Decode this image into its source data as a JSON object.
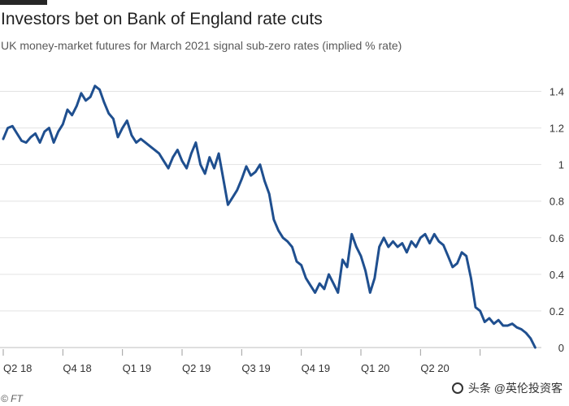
{
  "header": {
    "title": "Investors bet on Bank of England rate cuts",
    "subtitle": "UK money-market futures for March 2021 signal sub-zero rates (implied % rate)"
  },
  "footer": {
    "source": "© FT",
    "watermark": "头条 @英伦投资客"
  },
  "colors": {
    "line": "#1f4f8f",
    "grid": "#e3e3e3",
    "text": "#333333",
    "subtitle": "#595959",
    "accent": "#262626"
  },
  "chart_data": {
    "type": "line",
    "title": "Investors bet on Bank of England rate cuts",
    "subtitle": "UK money-market futures for March 2021 signal sub-zero rates (implied % rate)",
    "xlabel": "",
    "ylabel": "",
    "ylim": [
      0,
      1.5
    ],
    "grid": true,
    "y_axis_side": "right",
    "yticks": [
      0,
      0.2,
      0.4,
      0.6,
      0.8,
      1,
      1.2,
      1.4
    ],
    "ytick_labels": [
      "0",
      "0.2",
      "0.4",
      "0.6",
      "0.8",
      "1",
      "1.2",
      "1.4"
    ],
    "xticks": [
      0,
      13,
      26,
      39,
      52,
      65,
      78,
      91,
      104
    ],
    "xtick_labels": [
      "Q2 18",
      "Q4 18",
      "Q1 19",
      "Q2 19",
      "Q3 19",
      "Q4 19",
      "Q1 20",
      "Q2 20",
      ""
    ],
    "xlim": [
      0,
      117
    ],
    "series": [
      {
        "values": [
          [
            0,
            1.14
          ],
          [
            1,
            1.2
          ],
          [
            2,
            1.21
          ],
          [
            3,
            1.17
          ],
          [
            4,
            1.13
          ],
          [
            5,
            1.12
          ],
          [
            6,
            1.15
          ],
          [
            7,
            1.17
          ],
          [
            8,
            1.12
          ],
          [
            9,
            1.18
          ],
          [
            10,
            1.2
          ],
          [
            11,
            1.12
          ],
          [
            12,
            1.18
          ],
          [
            13,
            1.22
          ],
          [
            14,
            1.3
          ],
          [
            15,
            1.27
          ],
          [
            16,
            1.32
          ],
          [
            17,
            1.39
          ],
          [
            18,
            1.35
          ],
          [
            19,
            1.37
          ],
          [
            20,
            1.43
          ],
          [
            21,
            1.41
          ],
          [
            22,
            1.34
          ],
          [
            23,
            1.28
          ],
          [
            24,
            1.25
          ],
          [
            25,
            1.15
          ],
          [
            26,
            1.2
          ],
          [
            27,
            1.24
          ],
          [
            28,
            1.16
          ],
          [
            29,
            1.12
          ],
          [
            30,
            1.14
          ],
          [
            31,
            1.12
          ],
          [
            32,
            1.1
          ],
          [
            33,
            1.08
          ],
          [
            34,
            1.06
          ],
          [
            35,
            1.02
          ],
          [
            36,
            0.98
          ],
          [
            37,
            1.04
          ],
          [
            38,
            1.08
          ],
          [
            39,
            1.02
          ],
          [
            40,
            0.98
          ],
          [
            41,
            1.06
          ],
          [
            42,
            1.12
          ],
          [
            43,
            1.0
          ],
          [
            44,
            0.95
          ],
          [
            45,
            1.04
          ],
          [
            46,
            0.98
          ],
          [
            47,
            1.06
          ],
          [
            48,
            0.92
          ],
          [
            49,
            0.78
          ],
          [
            50,
            0.82
          ],
          [
            51,
            0.86
          ],
          [
            52,
            0.92
          ],
          [
            53,
            0.99
          ],
          [
            54,
            0.94
          ],
          [
            55,
            0.96
          ],
          [
            56,
            1.0
          ],
          [
            57,
            0.91
          ],
          [
            58,
            0.84
          ],
          [
            59,
            0.7
          ],
          [
            60,
            0.64
          ],
          [
            61,
            0.6
          ],
          [
            62,
            0.58
          ],
          [
            63,
            0.55
          ],
          [
            64,
            0.47
          ],
          [
            65,
            0.45
          ],
          [
            66,
            0.38
          ],
          [
            67,
            0.34
          ],
          [
            68,
            0.3
          ],
          [
            69,
            0.35
          ],
          [
            70,
            0.32
          ],
          [
            71,
            0.4
          ],
          [
            72,
            0.35
          ],
          [
            73,
            0.3
          ],
          [
            74,
            0.48
          ],
          [
            75,
            0.44
          ],
          [
            76,
            0.62
          ],
          [
            77,
            0.55
          ],
          [
            78,
            0.5
          ],
          [
            79,
            0.42
          ],
          [
            80,
            0.3
          ],
          [
            81,
            0.38
          ],
          [
            82,
            0.55
          ],
          [
            83,
            0.6
          ],
          [
            84,
            0.55
          ],
          [
            85,
            0.58
          ],
          [
            86,
            0.55
          ],
          [
            87,
            0.57
          ],
          [
            88,
            0.52
          ],
          [
            89,
            0.58
          ],
          [
            90,
            0.55
          ],
          [
            91,
            0.6
          ],
          [
            92,
            0.62
          ],
          [
            93,
            0.57
          ],
          [
            94,
            0.62
          ],
          [
            95,
            0.58
          ],
          [
            96,
            0.56
          ],
          [
            97,
            0.5
          ],
          [
            98,
            0.44
          ],
          [
            99,
            0.46
          ],
          [
            100,
            0.52
          ],
          [
            101,
            0.5
          ],
          [
            102,
            0.38
          ],
          [
            103,
            0.22
          ],
          [
            104,
            0.2
          ],
          [
            105,
            0.14
          ],
          [
            106,
            0.16
          ],
          [
            107,
            0.13
          ],
          [
            108,
            0.15
          ],
          [
            109,
            0.12
          ],
          [
            110,
            0.12
          ],
          [
            111,
            0.13
          ],
          [
            112,
            0.11
          ],
          [
            113,
            0.1
          ],
          [
            114,
            0.08
          ],
          [
            115,
            0.05
          ],
          [
            116,
            0.0
          ]
        ]
      }
    ]
  }
}
